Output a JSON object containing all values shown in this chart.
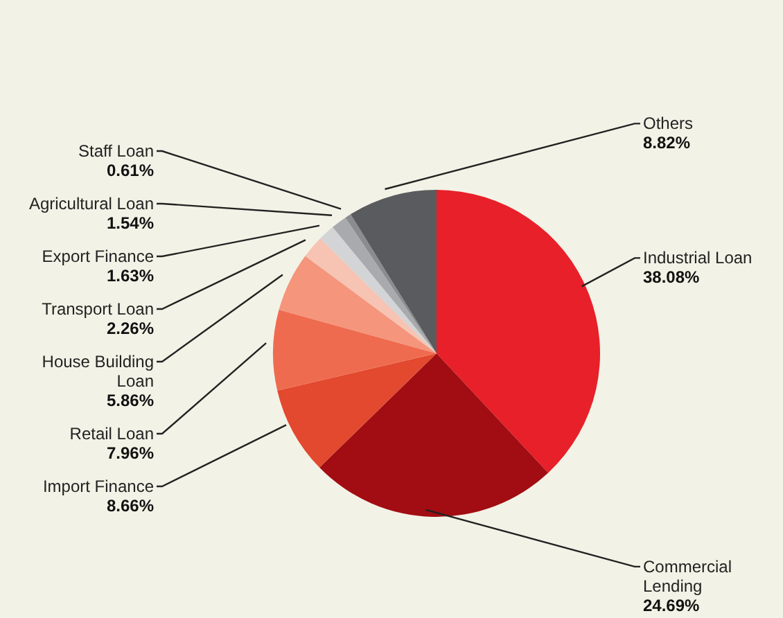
{
  "chart_data": {
    "type": "pie",
    "categories": [
      "Industrial Loan",
      "Commercial Lending",
      "Import Finance",
      "Retail Loan",
      "House Building Loan",
      "Transport Loan",
      "Export Finance",
      "Agricultural Loan",
      "Staff Loan",
      "Others"
    ],
    "values": [
      38.08,
      24.69,
      8.66,
      7.96,
      5.86,
      2.26,
      1.63,
      1.54,
      0.61,
      8.82
    ],
    "colors": [
      "#e8202a",
      "#a10d12",
      "#e2492f",
      "#ef6b4f",
      "#f4957c",
      "#f7c3b3",
      "#d3d4d6",
      "#a9aaad",
      "#8b8c8f",
      "#5a5b5e"
    ],
    "value_labels": [
      "38.08%",
      "24.69%",
      "8.66%",
      "7.96%",
      "5.86%",
      "2.26%",
      "1.63%",
      "1.54%",
      "0.61%",
      "8.82%"
    ],
    "legend": false
  }
}
